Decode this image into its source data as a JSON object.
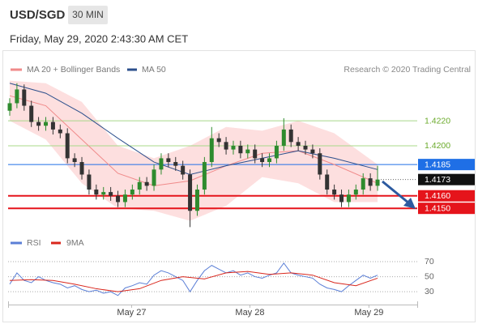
{
  "chart_data": {
    "type": "candlestick",
    "title": "USD/SGD",
    "interval": "30 MIN",
    "subtitle": "Friday, May 29, 2020 2:43:30 AM CET",
    "credit": "Research © 2020 Trading Central",
    "x": [
      0,
      1,
      2,
      3,
      4,
      5,
      6,
      7,
      8,
      9,
      10,
      11,
      12,
      13,
      14,
      15,
      16,
      17,
      18,
      19,
      20,
      21,
      22,
      23,
      24,
      25,
      26,
      27,
      28,
      29,
      30,
      31,
      32,
      33,
      34,
      35,
      36,
      37,
      38,
      39,
      40,
      41,
      42,
      43,
      44,
      45,
      46,
      47,
      48,
      49,
      50,
      51
    ],
    "xlim": [
      0,
      56.5
    ],
    "xticks": [
      {
        "value": 16.9,
        "label": "May 27"
      },
      {
        "value": 33.3,
        "label": "May 28"
      },
      {
        "value": 49.8,
        "label": "May 29"
      }
    ],
    "ylim": [
      1.4132,
      1.4255
    ],
    "up_color": "#2e8b2e",
    "down_color": "#333333",
    "open": [
      1.4228,
      1.4234,
      1.4245,
      1.4232,
      1.4219,
      1.4216,
      1.4219,
      1.4213,
      1.421,
      1.419,
      1.4187,
      1.4177,
      1.4165,
      1.4161,
      1.4163,
      1.416,
      1.4155,
      1.4161,
      1.4165,
      1.4171,
      1.4168,
      1.4181,
      1.419,
      1.4187,
      1.4184,
      1.4177,
      1.4148,
      1.4165,
      1.4187,
      1.4206,
      1.4203,
      1.4197,
      1.42,
      1.4194,
      1.4197,
      1.419,
      1.4187,
      1.419,
      1.42,
      1.4213,
      1.4203,
      1.42,
      1.4197,
      1.4194,
      1.4177,
      1.4165,
      1.4161,
      1.4155,
      1.4161,
      1.4165,
      1.4174,
      1.4168
    ],
    "high": [
      1.4238,
      1.425,
      1.4249,
      1.4236,
      1.4223,
      1.4223,
      1.4223,
      1.4217,
      1.4214,
      1.4194,
      1.4191,
      1.4181,
      1.4169,
      1.4167,
      1.4167,
      1.4164,
      1.4165,
      1.4169,
      1.4175,
      1.4175,
      1.4185,
      1.4194,
      1.4194,
      1.4191,
      1.4188,
      1.4181,
      1.4169,
      1.4191,
      1.4215,
      1.421,
      1.4207,
      1.4204,
      1.4204,
      1.4201,
      1.4201,
      1.4194,
      1.4194,
      1.4204,
      1.4222,
      1.4217,
      1.4207,
      1.4204,
      1.4201,
      1.4198,
      1.4181,
      1.4169,
      1.4165,
      1.4165,
      1.4169,
      1.4178,
      1.4178,
      1.4184
    ],
    "low": [
      1.4224,
      1.423,
      1.4228,
      1.4215,
      1.4212,
      1.4212,
      1.4209,
      1.4206,
      1.4186,
      1.4183,
      1.4173,
      1.4161,
      1.4157,
      1.4157,
      1.4156,
      1.4151,
      1.4151,
      1.4157,
      1.4161,
      1.4164,
      1.4164,
      1.4177,
      1.4183,
      1.418,
      1.4173,
      1.4135,
      1.4144,
      1.4161,
      1.4183,
      1.4199,
      1.4193,
      1.4193,
      1.419,
      1.419,
      1.4186,
      1.4183,
      1.4183,
      1.4186,
      1.4196,
      1.4199,
      1.4196,
      1.4193,
      1.419,
      1.4173,
      1.4161,
      1.4157,
      1.4151,
      1.4151,
      1.4157,
      1.4161,
      1.4164,
      1.4164
    ],
    "close": [
      1.4234,
      1.4245,
      1.4232,
      1.4219,
      1.4216,
      1.4219,
      1.4213,
      1.421,
      1.419,
      1.4187,
      1.4177,
      1.4165,
      1.4161,
      1.4163,
      1.416,
      1.4155,
      1.4161,
      1.4165,
      1.4171,
      1.4168,
      1.4181,
      1.419,
      1.4187,
      1.4184,
      1.4177,
      1.4148,
      1.4165,
      1.4187,
      1.4206,
      1.4203,
      1.4197,
      1.42,
      1.4194,
      1.4197,
      1.419,
      1.4187,
      1.419,
      1.42,
      1.4213,
      1.4203,
      1.42,
      1.4197,
      1.4194,
      1.4177,
      1.4165,
      1.4161,
      1.4155,
      1.4161,
      1.4165,
      1.4174,
      1.4168,
      1.4173
    ],
    "overlays": [
      {
        "name": "MA 20 + Bollinger Bands",
        "color": "#f08a8a",
        "band_color": "#fbc9c9",
        "x": [
          0,
          5,
          10,
          15,
          20,
          25,
          30,
          35,
          40,
          45,
          51
        ],
        "values": [
          1.424,
          1.4232,
          1.4205,
          1.4178,
          1.4168,
          1.4172,
          1.4184,
          1.4194,
          1.4196,
          1.4185,
          1.417
        ],
        "upper": [
          1.4252,
          1.425,
          1.4235,
          1.42,
          1.419,
          1.42,
          1.4215,
          1.4212,
          1.422,
          1.421,
          1.4185
        ],
        "lower": [
          1.422,
          1.4205,
          1.417,
          1.415,
          1.4148,
          1.414,
          1.4152,
          1.4175,
          1.417,
          1.4155,
          1.4155
        ]
      },
      {
        "name": "MA 50",
        "color": "#2c4f8c",
        "x": [
          0,
          5,
          10,
          15,
          20,
          25,
          30,
          35,
          40,
          45,
          51
        ],
        "values": [
          1.425,
          1.4242,
          1.4226,
          1.4206,
          1.4187,
          1.4177,
          1.4184,
          1.419,
          1.4196,
          1.419,
          1.4181
        ]
      }
    ],
    "levels": [
      {
        "value": 1.422,
        "label": "1.4220",
        "color": "#6aaa2a",
        "line_color": "#a8d88a",
        "box": false,
        "width": 1
      },
      {
        "value": 1.42,
        "label": "1.4200",
        "color": "#6aaa2a",
        "line_color": "#a8d88a",
        "box": false,
        "width": 1
      },
      {
        "value": 1.4185,
        "label": "1.4185",
        "color": "#1f6fe6",
        "line_color": "#1f6fe6",
        "box": true,
        "width": 1
      },
      {
        "value": 1.416,
        "label": "1.4160",
        "color": "#e5141b",
        "line_color": "#e5141b",
        "box": true,
        "width": 2
      },
      {
        "value": 1.415,
        "label": "1.4150",
        "color": "#e5141b",
        "line_color": "#e5141b",
        "box": true,
        "width": 2
      }
    ],
    "last": {
      "value": 1.4173,
      "label": "1.4173",
      "color": "#111111"
    },
    "rsi": {
      "ylim": [
        14,
        84
      ],
      "yticks": [
        30,
        50,
        70
      ],
      "series": [
        {
          "name": "RSI",
          "color": "#5b7fd6",
          "values": [
            40,
            55,
            45,
            42,
            50,
            45,
            42,
            40,
            35,
            38,
            33,
            30,
            32,
            28,
            30,
            25,
            35,
            38,
            42,
            40,
            52,
            58,
            55,
            50,
            45,
            30,
            45,
            58,
            65,
            60,
            55,
            58,
            52,
            55,
            50,
            48,
            52,
            55,
            68,
            55,
            52,
            50,
            48,
            40,
            35,
            33,
            30,
            38,
            45,
            52,
            48,
            52
          ]
        },
        {
          "name": "9MA",
          "color": "#d9261c",
          "x": [
            0,
            3,
            6,
            9,
            12,
            15,
            18,
            21,
            24,
            27,
            30,
            33,
            36,
            39,
            42,
            45,
            48,
            51
          ],
          "values": [
            45,
            46,
            45,
            40,
            34,
            30,
            34,
            45,
            50,
            47,
            55,
            57,
            53,
            55,
            52,
            42,
            38,
            48
          ]
        }
      ]
    }
  }
}
